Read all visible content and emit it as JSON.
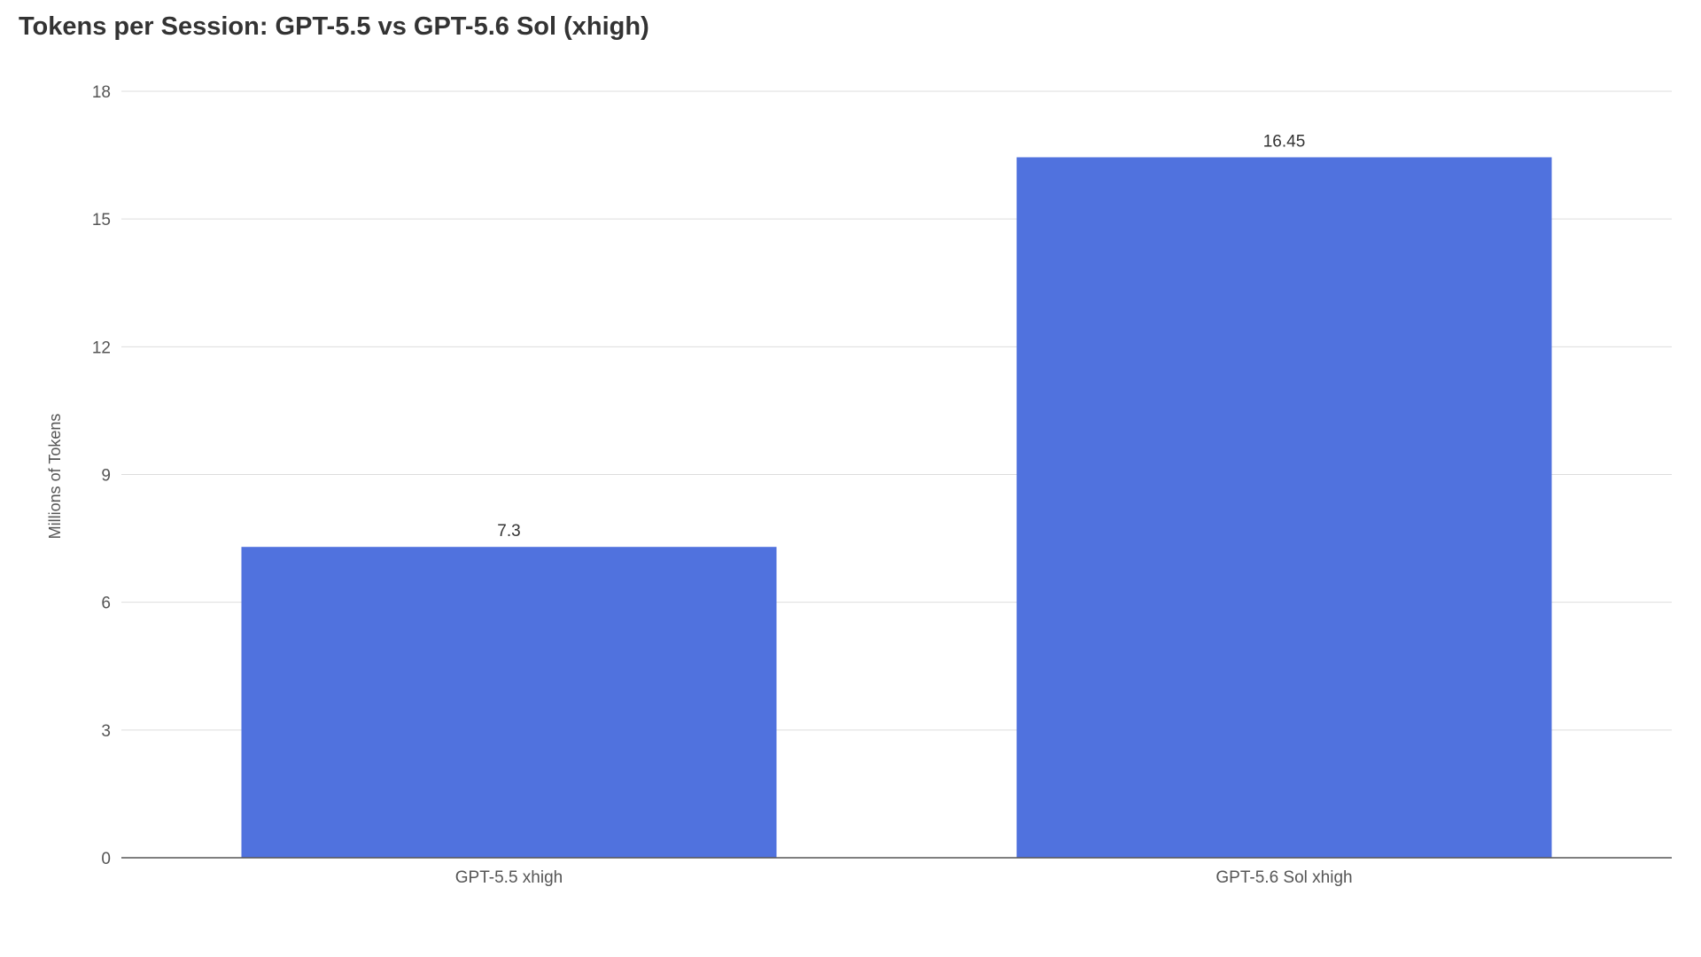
{
  "chart_data": {
    "type": "bar",
    "title": "Tokens per Session: GPT-5.5 vs GPT-5.6 Sol (xhigh)",
    "xlabel": "",
    "ylabel": "Millions of Tokens",
    "categories": [
      "GPT-5.5 xhigh",
      "GPT-5.6 Sol xhigh"
    ],
    "values": [
      7.3,
      16.45
    ],
    "value_labels": [
      "7.3",
      "16.45"
    ],
    "ylim": [
      0,
      18
    ],
    "yticks": [
      0,
      3,
      6,
      9,
      12,
      15,
      18
    ],
    "grid": true,
    "legend": "none",
    "colors": {
      "bar": "#5072de",
      "grid": "#dddddd",
      "axis": "#555555"
    }
  }
}
